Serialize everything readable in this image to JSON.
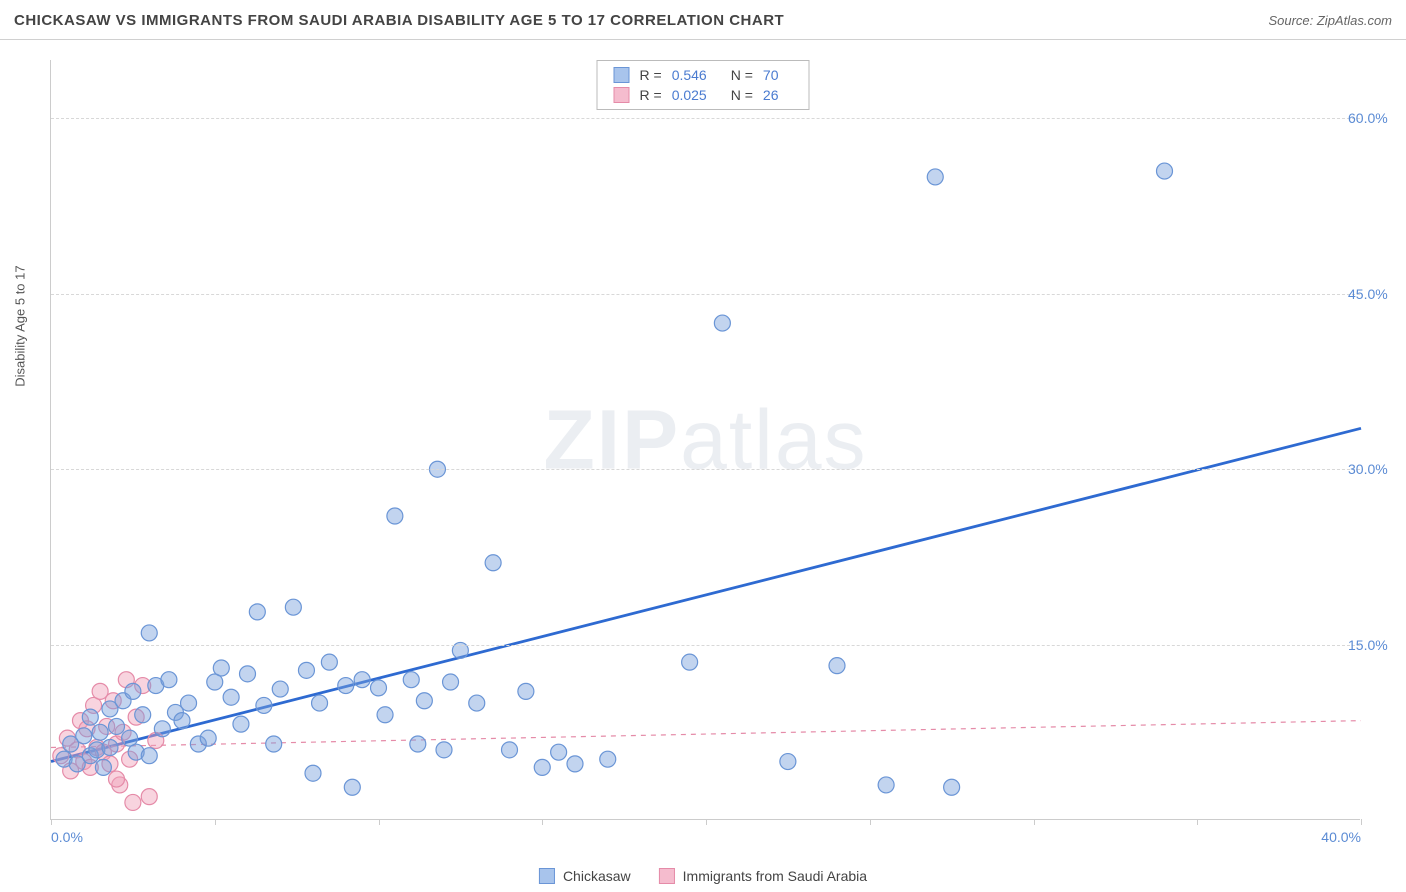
{
  "title": "CHICKASAW VS IMMIGRANTS FROM SAUDI ARABIA DISABILITY AGE 5 TO 17 CORRELATION CHART",
  "source": "Source: ZipAtlas.com",
  "ylabel": "Disability Age 5 to 17",
  "watermark_bold": "ZIP",
  "watermark_rest": "atlas",
  "chart": {
    "type": "scatter",
    "xlim": [
      0,
      40
    ],
    "ylim": [
      0,
      65
    ],
    "xticks": [
      0,
      5,
      10,
      15,
      20,
      25,
      30,
      35,
      40
    ],
    "xtick_labels": {
      "0": "0.0%",
      "40": "40.0%"
    },
    "yticks": [
      15,
      30,
      45,
      60
    ],
    "ytick_labels": [
      "15.0%",
      "30.0%",
      "45.0%",
      "60.0%"
    ],
    "grid_color": "#d8d8d8",
    "axis_color": "#cccccc",
    "background_color": "#ffffff",
    "tick_label_color": "#5b8bd4",
    "marker_radius": 8,
    "marker_stroke_width": 1.2,
    "trend_line_width_primary": 2.8,
    "trend_line_width_secondary": 1.2,
    "trend_dash_secondary": "5,5"
  },
  "series": [
    {
      "name": "Chickasaw",
      "fill": "rgba(120,160,220,0.45)",
      "stroke": "#6a95d6",
      "swatch_fill": "#a8c4ec",
      "swatch_border": "#6a95d6",
      "R": "0.546",
      "N": "70",
      "trend": {
        "x1": 0,
        "y1": 5,
        "x2": 40,
        "y2": 33.5,
        "color": "#2e6ad1",
        "dashed": false
      },
      "points": [
        [
          0.4,
          5.2
        ],
        [
          0.6,
          6.5
        ],
        [
          0.8,
          4.8
        ],
        [
          1.0,
          7.2
        ],
        [
          1.2,
          5.5
        ],
        [
          1.2,
          8.8
        ],
        [
          1.4,
          6.0
        ],
        [
          1.5,
          7.5
        ],
        [
          1.6,
          4.5
        ],
        [
          1.8,
          9.5
        ],
        [
          1.8,
          6.2
        ],
        [
          2.0,
          8.0
        ],
        [
          2.2,
          10.2
        ],
        [
          2.4,
          7.0
        ],
        [
          2.5,
          11.0
        ],
        [
          2.6,
          5.8
        ],
        [
          2.8,
          9.0
        ],
        [
          3.0,
          16.0
        ],
        [
          3.2,
          11.5
        ],
        [
          3.4,
          7.8
        ],
        [
          3.6,
          12.0
        ],
        [
          3.8,
          9.2
        ],
        [
          4.0,
          8.5
        ],
        [
          4.2,
          10.0
        ],
        [
          4.5,
          6.5
        ],
        [
          5.0,
          11.8
        ],
        [
          5.2,
          13.0
        ],
        [
          5.5,
          10.5
        ],
        [
          5.8,
          8.2
        ],
        [
          6.0,
          12.5
        ],
        [
          6.3,
          17.8
        ],
        [
          6.5,
          9.8
        ],
        [
          7.0,
          11.2
        ],
        [
          7.4,
          18.2
        ],
        [
          7.8,
          12.8
        ],
        [
          8.0,
          4.0
        ],
        [
          8.2,
          10.0
        ],
        [
          8.5,
          13.5
        ],
        [
          9.0,
          11.5
        ],
        [
          9.2,
          2.8
        ],
        [
          9.5,
          12.0
        ],
        [
          10.0,
          11.3
        ],
        [
          10.2,
          9.0
        ],
        [
          10.5,
          26.0
        ],
        [
          11.0,
          12.0
        ],
        [
          11.2,
          6.5
        ],
        [
          11.4,
          10.2
        ],
        [
          11.8,
          30.0
        ],
        [
          12.0,
          6.0
        ],
        [
          12.2,
          11.8
        ],
        [
          12.5,
          14.5
        ],
        [
          13.0,
          10.0
        ],
        [
          13.5,
          22.0
        ],
        [
          14.0,
          6.0
        ],
        [
          14.5,
          11.0
        ],
        [
          15.0,
          4.5
        ],
        [
          15.5,
          5.8
        ],
        [
          16.0,
          4.8
        ],
        [
          17.0,
          5.2
        ],
        [
          19.5,
          13.5
        ],
        [
          20.5,
          42.5
        ],
        [
          22.5,
          5.0
        ],
        [
          24.0,
          13.2
        ],
        [
          25.5,
          3.0
        ],
        [
          27.0,
          55.0
        ],
        [
          27.5,
          2.8
        ],
        [
          34.0,
          55.5
        ],
        [
          3.0,
          5.5
        ],
        [
          4.8,
          7.0
        ],
        [
          6.8,
          6.5
        ]
      ]
    },
    {
      "name": "Immigrants from Saudi Arabia",
      "fill": "rgba(240,160,185,0.45)",
      "stroke": "#e58ba8",
      "swatch_fill": "#f5bcce",
      "swatch_border": "#e58ba8",
      "R": "0.025",
      "N": "26",
      "trend": {
        "x1": 0,
        "y1": 6.2,
        "x2": 40,
        "y2": 8.5,
        "color": "#e58ba8",
        "dashed": true
      },
      "points": [
        [
          0.3,
          5.5
        ],
        [
          0.5,
          7.0
        ],
        [
          0.6,
          4.2
        ],
        [
          0.8,
          6.0
        ],
        [
          0.9,
          8.5
        ],
        [
          1.0,
          5.0
        ],
        [
          1.1,
          7.8
        ],
        [
          1.2,
          4.5
        ],
        [
          1.3,
          9.8
        ],
        [
          1.4,
          6.2
        ],
        [
          1.5,
          11.0
        ],
        [
          1.6,
          5.8
        ],
        [
          1.7,
          8.0
        ],
        [
          1.8,
          4.8
        ],
        [
          1.9,
          10.2
        ],
        [
          2.0,
          6.5
        ],
        [
          2.1,
          3.0
        ],
        [
          2.2,
          7.5
        ],
        [
          2.3,
          12.0
        ],
        [
          2.4,
          5.2
        ],
        [
          2.5,
          1.5
        ],
        [
          2.6,
          8.8
        ],
        [
          2.8,
          11.5
        ],
        [
          3.0,
          2.0
        ],
        [
          3.2,
          6.8
        ],
        [
          2.0,
          3.5
        ]
      ]
    }
  ],
  "legend_top_labels": {
    "r_prefix": "R  =",
    "n_prefix": "N  ="
  },
  "legend_bottom": [
    "Chickasaw",
    "Immigrants from Saudi Arabia"
  ]
}
